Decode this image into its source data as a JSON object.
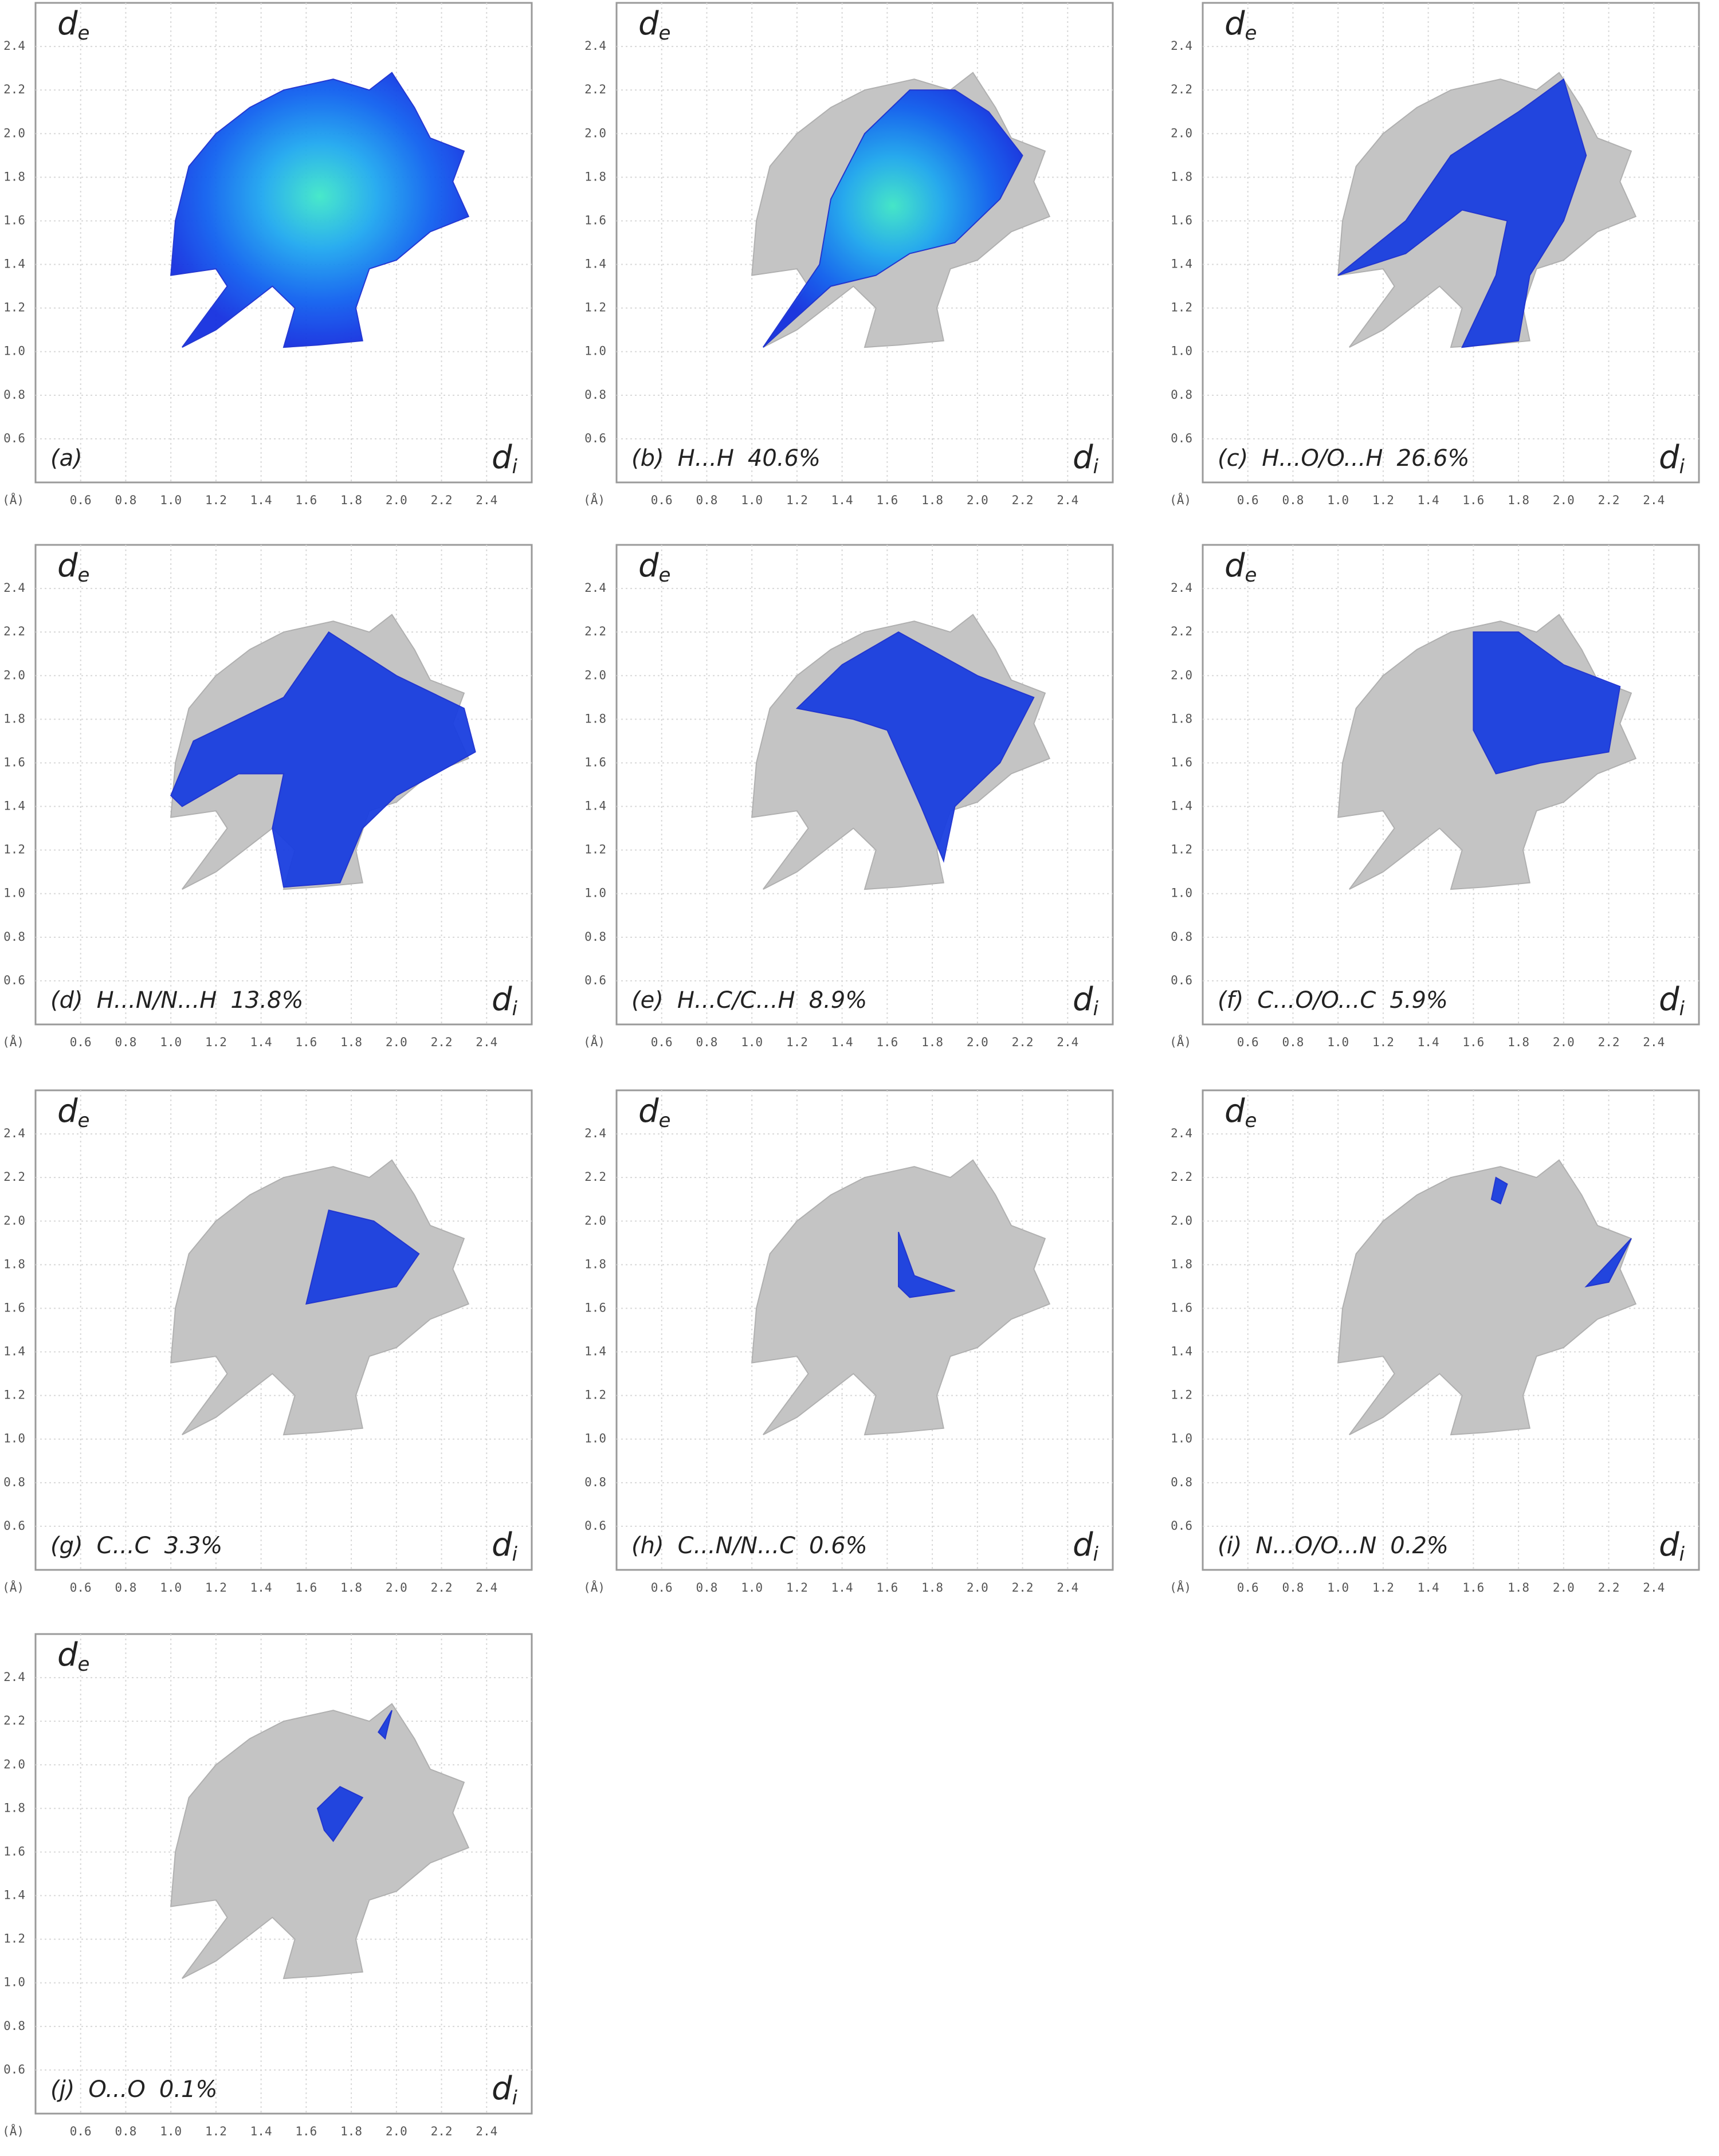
{
  "chart_data": [
    {
      "type": "fingerprint",
      "panel": "(a)",
      "ylabel": "d",
      "ylabel_sub": "e",
      "xlabel": "d",
      "xlabel_sub": "i",
      "xunit": "(Å)",
      "xlim": [
        0.4,
        2.6
      ],
      "ylim": [
        0.4,
        2.6
      ],
      "xticks": [
        0.6,
        0.8,
        {
          "value": 1,
          "label": "1.0"
        },
        1.2,
        1.4,
        1.6,
        1.8,
        {
          "value": 2,
          "label": "2.0"
        },
        2.2,
        2.4
      ],
      "yticks": [
        0.6,
        0.8,
        {
          "value": 1,
          "label": "1.0"
        },
        1.2,
        1.4,
        1.6,
        1.8,
        {
          "value": 2,
          "label": "2.0"
        },
        2.2,
        2.4
      ],
      "grid": true
    },
    {
      "type": "fingerprint",
      "panel": "(b)",
      "contact": "H...H",
      "value": 40.6,
      "value_label": "40.6%",
      "ylabel": "d",
      "ylabel_sub": "e",
      "xlabel": "d",
      "xlabel_sub": "i",
      "xunit": "(Å)",
      "xlim": [
        0.4,
        2.6
      ],
      "ylim": [
        0.4,
        2.6
      ],
      "xticks": [
        0.6,
        0.8,
        {
          "value": 1,
          "label": "1.0"
        },
        1.2,
        1.4,
        1.6,
        1.8,
        {
          "value": 2,
          "label": "2.0"
        },
        2.2,
        2.4
      ],
      "yticks": [
        0.6,
        0.8,
        {
          "value": 1,
          "label": "1.0"
        },
        1.2,
        1.4,
        1.6,
        1.8,
        {
          "value": 2,
          "label": "2.0"
        },
        2.2,
        2.4
      ],
      "grid": true
    },
    {
      "type": "fingerprint",
      "panel": "(c)",
      "contact": "H...O/O...H",
      "value": 26.6,
      "value_label": "26.6%",
      "ylabel": "d",
      "ylabel_sub": "e",
      "xlabel": "d",
      "xlabel_sub": "i",
      "xunit": "(Å)",
      "xlim": [
        0.4,
        2.6
      ],
      "ylim": [
        0.4,
        2.6
      ],
      "xticks": [
        0.6,
        0.8,
        {
          "value": 1,
          "label": "1.0"
        },
        1.2,
        1.4,
        1.6,
        1.8,
        {
          "value": 2,
          "label": "2.0"
        },
        2.2,
        2.4
      ],
      "yticks": [
        0.6,
        0.8,
        {
          "value": 1,
          "label": "1.0"
        },
        1.2,
        1.4,
        1.6,
        1.8,
        {
          "value": 2,
          "label": "2.0"
        },
        2.2,
        2.4
      ],
      "grid": true
    },
    {
      "type": "fingerprint",
      "panel": "(d)",
      "contact": "H...N/N...H",
      "value": 13.8,
      "value_label": "13.8%",
      "ylabel": "d",
      "ylabel_sub": "e",
      "xlabel": "d",
      "xlabel_sub": "i",
      "xunit": "(Å)",
      "xlim": [
        0.4,
        2.6
      ],
      "ylim": [
        0.4,
        2.6
      ],
      "xticks": [
        0.6,
        0.8,
        {
          "value": 1,
          "label": "1.0"
        },
        1.2,
        1.4,
        1.6,
        1.8,
        {
          "value": 2,
          "label": "2.0"
        },
        2.2,
        2.4
      ],
      "yticks": [
        0.6,
        0.8,
        {
          "value": 1,
          "label": "1.0"
        },
        1.2,
        1.4,
        1.6,
        1.8,
        {
          "value": 2,
          "label": "2.0"
        },
        2.2,
        2.4
      ],
      "grid": true
    },
    {
      "type": "fingerprint",
      "panel": "(e)",
      "contact": "H...C/C...H",
      "value": 8.9,
      "value_label": "8.9%",
      "ylabel": "d",
      "ylabel_sub": "e",
      "xlabel": "d",
      "xlabel_sub": "i",
      "xunit": "(Å)",
      "xlim": [
        0.4,
        2.6
      ],
      "ylim": [
        0.4,
        2.6
      ],
      "xticks": [
        0.6,
        0.8,
        {
          "value": 1,
          "label": "1.0"
        },
        1.2,
        1.4,
        1.6,
        1.8,
        {
          "value": 2,
          "label": "2.0"
        },
        2.2,
        2.4
      ],
      "yticks": [
        0.6,
        0.8,
        {
          "value": 1,
          "label": "1.0"
        },
        1.2,
        1.4,
        1.6,
        1.8,
        {
          "value": 2,
          "label": "2.0"
        },
        2.2,
        2.4
      ],
      "grid": true
    },
    {
      "type": "fingerprint",
      "panel": "(f)",
      "contact": "C...O/O...C",
      "value": 5.9,
      "value_label": "5.9%",
      "ylabel": "d",
      "ylabel_sub": "e",
      "xlabel": "d",
      "xlabel_sub": "i",
      "xunit": "(Å)",
      "xlim": [
        0.4,
        2.6
      ],
      "ylim": [
        0.4,
        2.6
      ],
      "xticks": [
        0.6,
        0.8,
        {
          "value": 1,
          "label": "1.0"
        },
        1.2,
        1.4,
        1.6,
        1.8,
        {
          "value": 2,
          "label": "2.0"
        },
        2.2,
        2.4
      ],
      "yticks": [
        0.6,
        0.8,
        {
          "value": 1,
          "label": "1.0"
        },
        1.2,
        1.4,
        1.6,
        1.8,
        {
          "value": 2,
          "label": "2.0"
        },
        2.2,
        2.4
      ],
      "grid": true
    },
    {
      "type": "fingerprint",
      "panel": "(g)",
      "contact": "C...C",
      "value": 3.3,
      "value_label": "3.3%",
      "ylabel": "d",
      "ylabel_sub": "e",
      "xlabel": "d",
      "xlabel_sub": "i",
      "xunit": "(Å)",
      "xlim": [
        0.4,
        2.6
      ],
      "ylim": [
        0.4,
        2.6
      ],
      "xticks": [
        0.6,
        0.8,
        {
          "value": 1,
          "label": "1.0"
        },
        1.2,
        1.4,
        1.6,
        1.8,
        {
          "value": 2,
          "label": "2.0"
        },
        2.2,
        2.4
      ],
      "yticks": [
        0.6,
        0.8,
        {
          "value": 1,
          "label": "1.0"
        },
        1.2,
        1.4,
        1.6,
        1.8,
        {
          "value": 2,
          "label": "2.0"
        },
        2.2,
        2.4
      ],
      "grid": true
    },
    {
      "type": "fingerprint",
      "panel": "(h)",
      "contact": "C...N/N...C",
      "value": 0.6,
      "value_label": "0.6%",
      "ylabel": "d",
      "ylabel_sub": "e",
      "xlabel": "d",
      "xlabel_sub": "i",
      "xunit": "(Å)",
      "xlim": [
        0.4,
        2.6
      ],
      "ylim": [
        0.4,
        2.6
      ],
      "xticks": [
        0.6,
        0.8,
        {
          "value": 1,
          "label": "1.0"
        },
        1.2,
        1.4,
        1.6,
        1.8,
        {
          "value": 2,
          "label": "2.0"
        },
        2.2,
        2.4
      ],
      "yticks": [
        0.6,
        0.8,
        {
          "value": 1,
          "label": "1.0"
        },
        1.2,
        1.4,
        1.6,
        1.8,
        {
          "value": 2,
          "label": "2.0"
        },
        2.2,
        2.4
      ],
      "grid": true
    },
    {
      "type": "fingerprint",
      "panel": "(i)",
      "contact": "N...O/O...N",
      "value": 0.2,
      "value_label": "0.2%",
      "ylabel": "d",
      "ylabel_sub": "e",
      "xlabel": "d",
      "xlabel_sub": "i",
      "xunit": "(Å)",
      "xlim": [
        0.4,
        2.6
      ],
      "ylim": [
        0.4,
        2.6
      ],
      "xticks": [
        0.6,
        0.8,
        {
          "value": 1,
          "label": "1.0"
        },
        1.2,
        1.4,
        1.6,
        1.8,
        {
          "value": 2,
          "label": "2.0"
        },
        2.2,
        2.4
      ],
      "yticks": [
        0.6,
        0.8,
        {
          "value": 1,
          "label": "1.0"
        },
        1.2,
        1.4,
        1.6,
        1.8,
        {
          "value": 2,
          "label": "2.0"
        },
        2.2,
        2.4
      ],
      "grid": true
    },
    {
      "type": "fingerprint",
      "panel": "(j)",
      "contact": "O...O",
      "value": 0.1,
      "value_label": "0.1%",
      "ylabel": "d",
      "ylabel_sub": "e",
      "xlabel": "d",
      "xlabel_sub": "i",
      "xunit": "(Å)",
      "xlim": [
        0.4,
        2.6
      ],
      "ylim": [
        0.4,
        2.6
      ],
      "xticks": [
        0.6,
        0.8,
        {
          "value": 1,
          "label": "1.0"
        },
        1.2,
        1.4,
        1.6,
        1.8,
        {
          "value": 2,
          "label": "2.0"
        },
        2.2,
        2.4
      ],
      "yticks": [
        0.6,
        0.8,
        {
          "value": 1,
          "label": "1.0"
        },
        1.2,
        1.4,
        1.6,
        1.8,
        {
          "value": 2,
          "label": "2.0"
        },
        2.2,
        2.4
      ],
      "grid": true
    }
  ]
}
